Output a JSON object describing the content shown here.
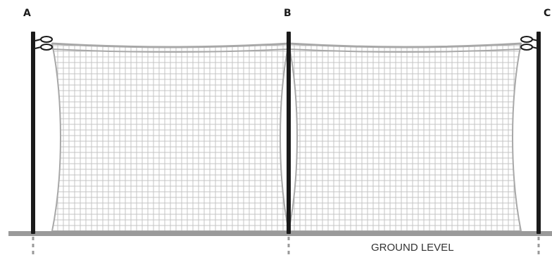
{
  "poles": [
    {
      "id": "A",
      "label": "A"
    },
    {
      "id": "B",
      "label": "B"
    },
    {
      "id": "C",
      "label": "C"
    }
  ],
  "ground": {
    "label": "GROUND LEVEL"
  },
  "colors": {
    "pole": "#1a1a1a",
    "net_mesh": "#c4c4c4",
    "net_border": "#a8a8a8",
    "ground": "#9a9a9a",
    "below_ground": "#9a9a9a"
  }
}
